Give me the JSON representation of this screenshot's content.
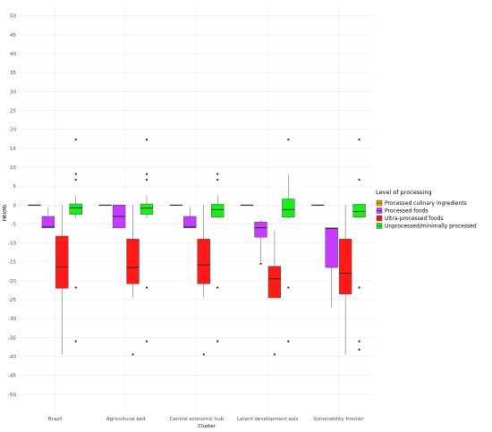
{
  "chart_data": {
    "type": "box",
    "xlabel": "Cluster",
    "ylabel": "HEI(M)",
    "ylim": [
      -55,
      53
    ],
    "yticks": [
      50,
      45,
      40,
      35,
      30,
      25,
      20,
      15,
      10,
      5,
      0,
      -5,
      -10,
      -15,
      -20,
      -25,
      -30,
      -35,
      -40,
      -45,
      -50
    ],
    "categories": [
      "Brazil",
      "Agricultural belt",
      "Central economic hub",
      "Latent development axis",
      "Vulnerability frontier"
    ],
    "legend": {
      "title": "Level of processing",
      "position": "right"
    },
    "series": [
      {
        "name": "Processed culinary ingredients",
        "color": "#e69f00",
        "boxes": [
          {
            "min": 0,
            "q1": 0,
            "median": 0,
            "q3": 0,
            "max": 0,
            "outliers": []
          },
          {
            "min": 0,
            "q1": 0,
            "median": 0,
            "q3": 0,
            "max": 0,
            "outliers": []
          },
          {
            "min": 0,
            "q1": 0,
            "median": 0,
            "q3": 0,
            "max": 0,
            "outliers": []
          },
          {
            "min": 0,
            "q1": 0,
            "median": 0,
            "q3": 0,
            "max": 0,
            "outliers": []
          },
          {
            "min": 0,
            "q1": 0,
            "median": 0,
            "q3": 0,
            "max": 0,
            "outliers": []
          }
        ]
      },
      {
        "name": "Processed foods",
        "color": "#c33cff",
        "boxes": [
          {
            "min": -6,
            "q1": -6,
            "median": -5.8,
            "q3": -3,
            "max": -0.5,
            "outliers": []
          },
          {
            "min": -6,
            "q1": -6,
            "median": -3,
            "q3": 0,
            "max": 0,
            "outliers": []
          },
          {
            "min": -6,
            "q1": -6,
            "median": -5.8,
            "q3": -3,
            "max": -0.5,
            "outliers": []
          },
          {
            "min": -15,
            "q1": -8.5,
            "median": -6,
            "q3": -4.5,
            "max": -4,
            "outliers": [
              -15.5
            ]
          },
          {
            "min": -27,
            "q1": -16.5,
            "median": -6.2,
            "q3": -6,
            "max": -6,
            "outliers": []
          }
        ]
      },
      {
        "name": "Ultra-processed foods",
        "color": "#ff1a1a",
        "boxes": [
          {
            "min": -39.5,
            "q1": -22,
            "median": -16.3,
            "q3": -8.2,
            "max": 0,
            "outliers": []
          },
          {
            "min": -24.5,
            "q1": -20.8,
            "median": -16.5,
            "q3": -9,
            "max": 0,
            "outliers": [
              -39.5
            ]
          },
          {
            "min": -24.5,
            "q1": -20.8,
            "median": -15.8,
            "q3": -9,
            "max": 0,
            "outliers": [
              -39.5
            ]
          },
          {
            "min": -24.5,
            "q1": -24.5,
            "median": -19.5,
            "q3": -16.2,
            "max": -6.7,
            "outliers": [
              -39.5
            ]
          },
          {
            "min": -39.5,
            "q1": -23.5,
            "median": -18,
            "q3": -9,
            "max": 0,
            "outliers": []
          }
        ]
      },
      {
        "name": "Unprocessed/minimally processed",
        "color": "#1aee1a",
        "boxes": [
          {
            "min": -3.5,
            "q1": -2.5,
            "median": -0.7,
            "q3": 0.3,
            "max": 2.5,
            "outliers": [
              17.3,
              8.2,
              6.7,
              -21.8,
              -36
            ]
          },
          {
            "min": -3.5,
            "q1": -2.5,
            "median": -0.8,
            "q3": 0.3,
            "max": 2.5,
            "outliers": [
              17.3,
              8.2,
              6.7,
              -21.8,
              -36
            ]
          },
          {
            "min": -3.5,
            "q1": -3.2,
            "median": -1.2,
            "q3": 0.2,
            "max": 2.5,
            "outliers": [
              8.2,
              6.7,
              -21.8,
              -36
            ]
          },
          {
            "min": -3.5,
            "q1": -3.2,
            "median": -1.2,
            "q3": 1.6,
            "max": 8.2,
            "outliers": [
              17.3,
              -21.8,
              -36
            ]
          },
          {
            "min": -3.5,
            "q1": -3.2,
            "median": -1.7,
            "q3": 0.2,
            "max": 0.2,
            "outliers": [
              17.3,
              6.7,
              -21.8,
              -36,
              -38.2
            ]
          }
        ]
      }
    ],
    "grid": true
  }
}
